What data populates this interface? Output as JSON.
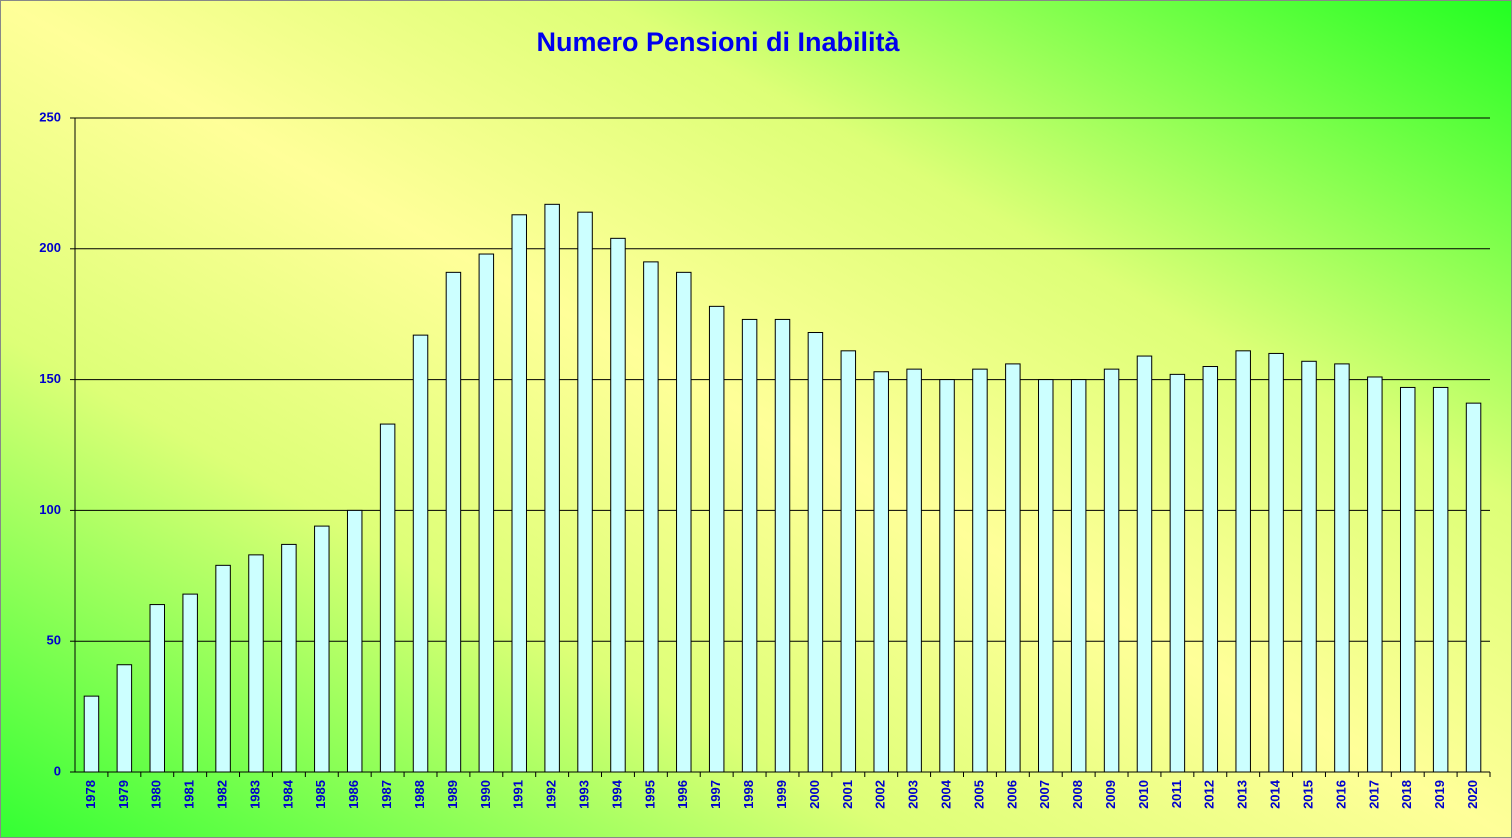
{
  "chart_data": {
    "type": "bar",
    "title": "Numero Pensioni di Inabilità",
    "categories": [
      "1978",
      "1979",
      "1980",
      "1981",
      "1982",
      "1983",
      "1984",
      "1985",
      "1986",
      "1987",
      "1988",
      "1989",
      "1990",
      "1991",
      "1992",
      "1993",
      "1994",
      "1995",
      "1996",
      "1997",
      "1998",
      "1999",
      "2000",
      "2001",
      "2002",
      "2003",
      "2004",
      "2005",
      "2006",
      "2007",
      "2008",
      "2009",
      "2010",
      "2011",
      "2012",
      "2013",
      "2014",
      "2015",
      "2016",
      "2017",
      "2018",
      "2019",
      "2020"
    ],
    "values": [
      29,
      41,
      64,
      68,
      79,
      83,
      87,
      94,
      100,
      133,
      167,
      191,
      198,
      213,
      217,
      214,
      204,
      195,
      191,
      178,
      173,
      173,
      168,
      161,
      153,
      154,
      150,
      154,
      156,
      150,
      150,
      154,
      159,
      152,
      155,
      161,
      160,
      157,
      156,
      151,
      147,
      147,
      141
    ],
    "color": "#ccffff",
    "ylim": [
      0,
      250
    ],
    "yticks": [
      0,
      50,
      100,
      150,
      200,
      250
    ],
    "grid": true
  }
}
